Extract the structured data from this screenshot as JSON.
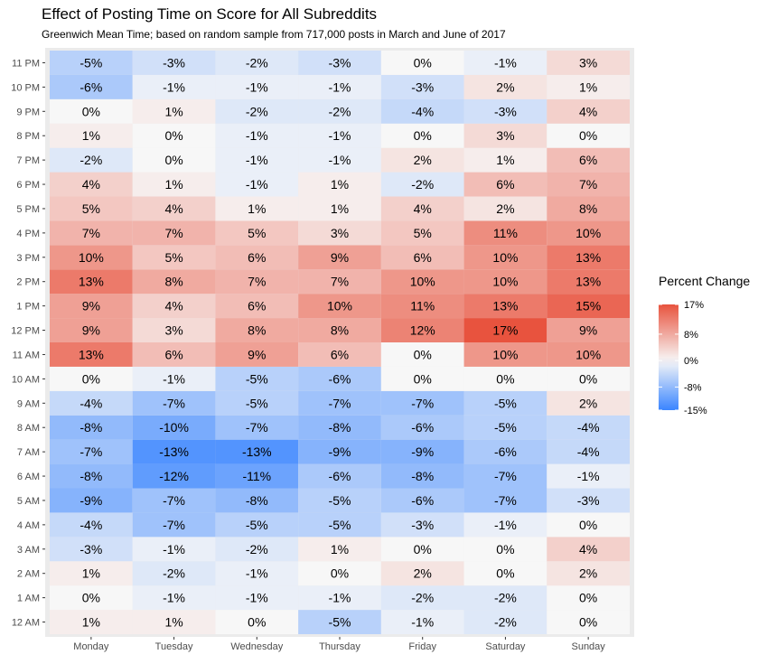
{
  "chart_data": {
    "type": "heatmap",
    "title": "Effect of Posting Time on Score for All Subreddits",
    "subtitle": "Greenwich Mean Time; based on random sample from 717,000  posts in March and June of 2017",
    "xlabel": "",
    "ylabel": "",
    "x_categories": [
      "Monday",
      "Tuesday",
      "Wednesday",
      "Thursday",
      "Friday",
      "Saturday",
      "Sunday"
    ],
    "y_categories": [
      "12 AM",
      "1 AM",
      "2 AM",
      "3 AM",
      "4 AM",
      "5 AM",
      "6 AM",
      "7 AM",
      "8 AM",
      "9 AM",
      "10 AM",
      "11 AM",
      "12 PM",
      "1 PM",
      "2 PM",
      "3 PM",
      "4 PM",
      "5 PM",
      "6 PM",
      "7 PM",
      "8 PM",
      "9 PM",
      "10 PM",
      "11 PM"
    ],
    "values": [
      [
        1,
        1,
        0,
        -5,
        -1,
        -2,
        0
      ],
      [
        0,
        -1,
        -1,
        -1,
        -2,
        -2,
        0
      ],
      [
        1,
        -2,
        -1,
        0,
        2,
        0,
        2
      ],
      [
        -3,
        -1,
        -2,
        1,
        0,
        0,
        4
      ],
      [
        -4,
        -7,
        -5,
        -5,
        -3,
        -1,
        0
      ],
      [
        -9,
        -7,
        -8,
        -5,
        -6,
        -7,
        -3
      ],
      [
        -8,
        -12,
        -11,
        -6,
        -8,
        -7,
        -1
      ],
      [
        -7,
        -13,
        -13,
        -9,
        -9,
        -6,
        -4
      ],
      [
        -8,
        -10,
        -7,
        -8,
        -6,
        -5,
        -4
      ],
      [
        -4,
        -7,
        -5,
        -7,
        -7,
        -5,
        2
      ],
      [
        0,
        -1,
        -5,
        -6,
        0,
        0,
        0
      ],
      [
        13,
        6,
        9,
        6,
        0,
        10,
        10
      ],
      [
        9,
        3,
        8,
        8,
        12,
        17,
        9
      ],
      [
        9,
        4,
        6,
        10,
        11,
        13,
        15
      ],
      [
        13,
        8,
        7,
        7,
        10,
        10,
        13
      ],
      [
        10,
        5,
        6,
        9,
        6,
        10,
        13
      ],
      [
        7,
        7,
        5,
        3,
        5,
        11,
        10
      ],
      [
        5,
        4,
        1,
        1,
        4,
        2,
        8
      ],
      [
        4,
        1,
        -1,
        1,
        -2,
        6,
        7
      ],
      [
        -2,
        0,
        -1,
        -1,
        2,
        1,
        6
      ],
      [
        1,
        0,
        -1,
        -1,
        0,
        3,
        0
      ],
      [
        0,
        1,
        -2,
        -2,
        -4,
        -3,
        4
      ],
      [
        -6,
        -1,
        -1,
        -1,
        -3,
        2,
        1
      ],
      [
        -5,
        -3,
        -2,
        -3,
        0,
        -1,
        3
      ]
    ],
    "value_suffix": "%",
    "legend": {
      "title": "Percent Change",
      "position": "right",
      "ticks": [
        17,
        8,
        0,
        -8,
        -15
      ],
      "tick_labels": [
        "17%",
        "8%",
        "0%",
        "-8%",
        "-15%"
      ],
      "min": -15,
      "max": 17
    },
    "colors": {
      "low": "#3a85ff",
      "mid": "#f7f7f7",
      "high": "#e8533e",
      "panel": "#ebebeb"
    }
  }
}
